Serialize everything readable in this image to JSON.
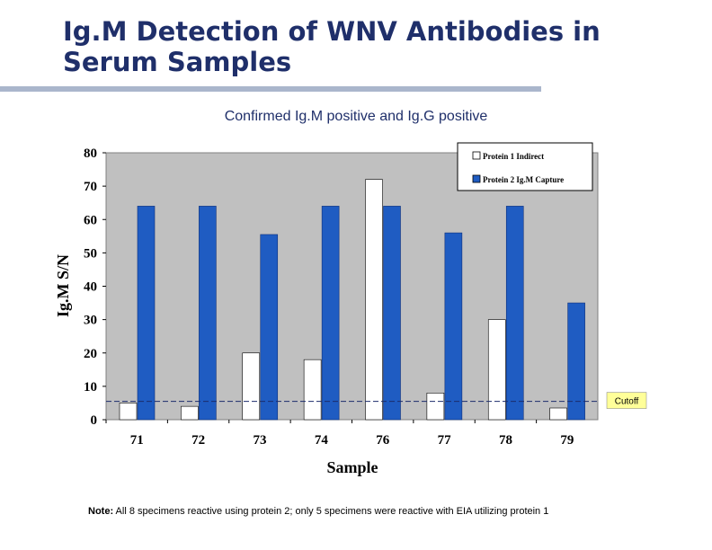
{
  "slide": {
    "title_line1": "Ig.M Detection of WNV Antibodies in",
    "title_line2": "Serum Samples",
    "note_label": "Note:",
    "note_text": " All 8 specimens reactive using protein 2; only 5 specimens were reactive with EIA utilizing protein 1"
  },
  "colors": {
    "plot_bg": "#c0c0c0",
    "series1": "#ffffff",
    "series2": "#1f5cc2",
    "cutoff_line": "#1c2c6c",
    "cutoff_box": "#ffff99"
  },
  "chart_data": {
    "type": "bar",
    "title": "Confirmed Ig.M positive and Ig.G positive",
    "xlabel": "Sample",
    "ylabel": "Ig.M S/N",
    "ylim": [
      0,
      80
    ],
    "yticks": [
      0,
      10,
      20,
      30,
      40,
      50,
      60,
      70,
      80
    ],
    "categories": [
      "71",
      "72",
      "73",
      "74",
      "76",
      "77",
      "78",
      "79"
    ],
    "series": [
      {
        "name": "Protein 1 Indirect",
        "values": [
          5,
          4,
          20,
          18,
          72,
          8,
          30,
          3.5
        ]
      },
      {
        "name": "Protein 2 Ig.M Capture",
        "values": [
          64,
          64,
          55.5,
          64,
          64,
          56,
          64,
          35
        ]
      }
    ],
    "cutoff": {
      "label": "Cutoff",
      "value": 5.5
    },
    "legend_position": "top-right"
  }
}
